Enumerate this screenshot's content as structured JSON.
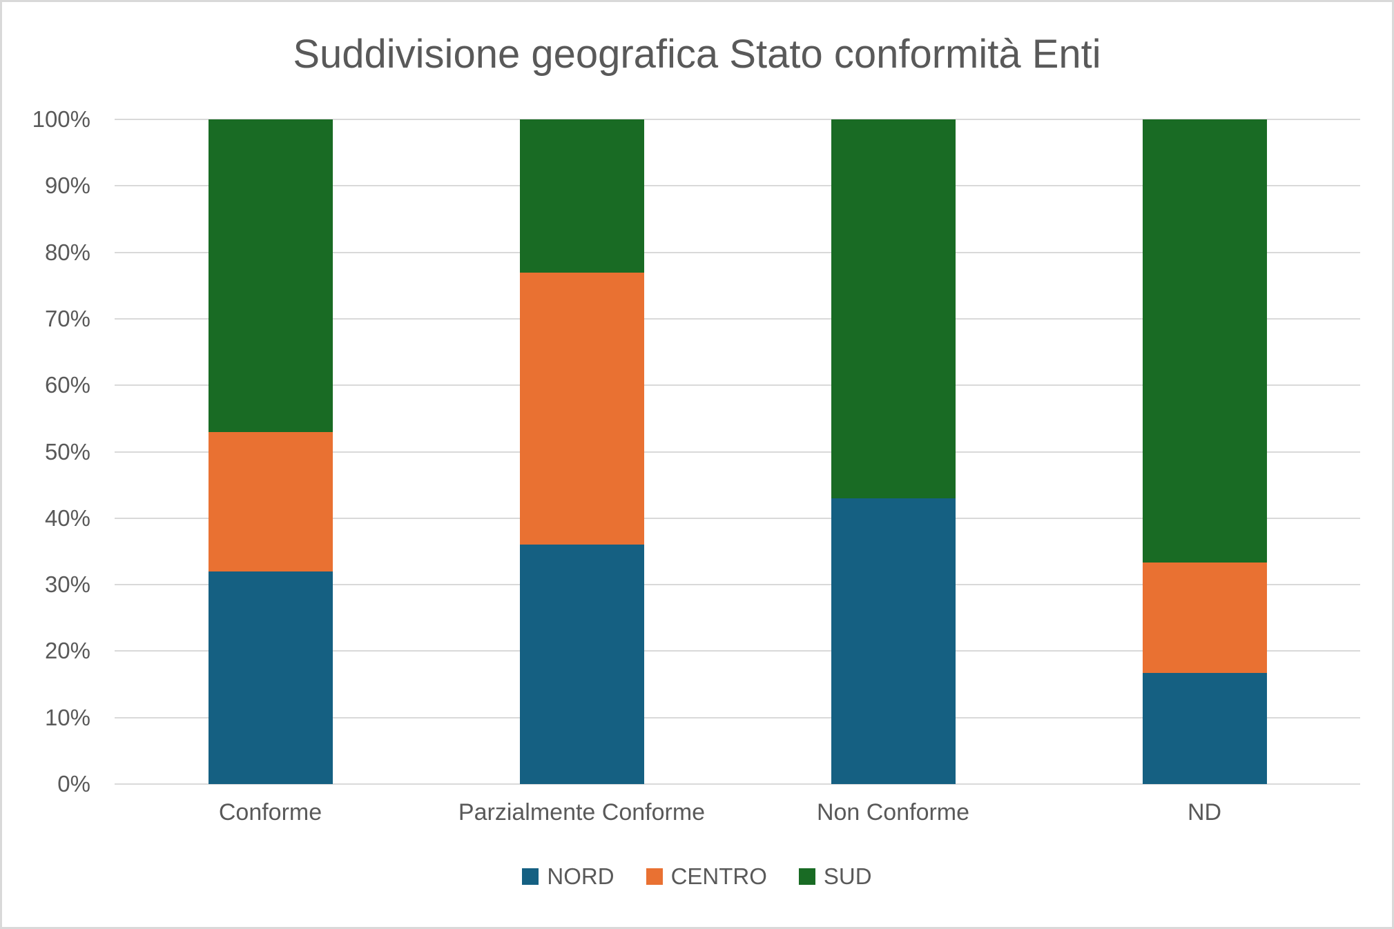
{
  "chart_data": {
    "type": "bar",
    "subtype": "stacked-100-percent",
    "title": "Suddivisione geografica Stato conformità Enti",
    "categories": [
      "Conforme",
      "Parzialmente Conforme",
      "Non Conforme",
      "ND"
    ],
    "series": [
      {
        "name": "NORD",
        "color": "#156082",
        "values": [
          32,
          36,
          43,
          16.7
        ]
      },
      {
        "name": "CENTRO",
        "color": "#E97132",
        "values": [
          21,
          41,
          0,
          16.6
        ]
      },
      {
        "name": "SUD",
        "color": "#196B24",
        "values": [
          47,
          23,
          57,
          66.7
        ]
      }
    ],
    "unit": "%",
    "xlabel": "",
    "ylabel": "",
    "ylim": [
      0,
      100
    ],
    "y_ticks": [
      "0%",
      "10%",
      "20%",
      "30%",
      "40%",
      "50%",
      "60%",
      "70%",
      "80%",
      "90%",
      "100%"
    ],
    "grid": true,
    "legend_position": "bottom",
    "colors": {
      "background": "#FFFFFF",
      "border": "#D9D9D9",
      "gridline": "#D9D9D9",
      "text": "#595959"
    }
  }
}
